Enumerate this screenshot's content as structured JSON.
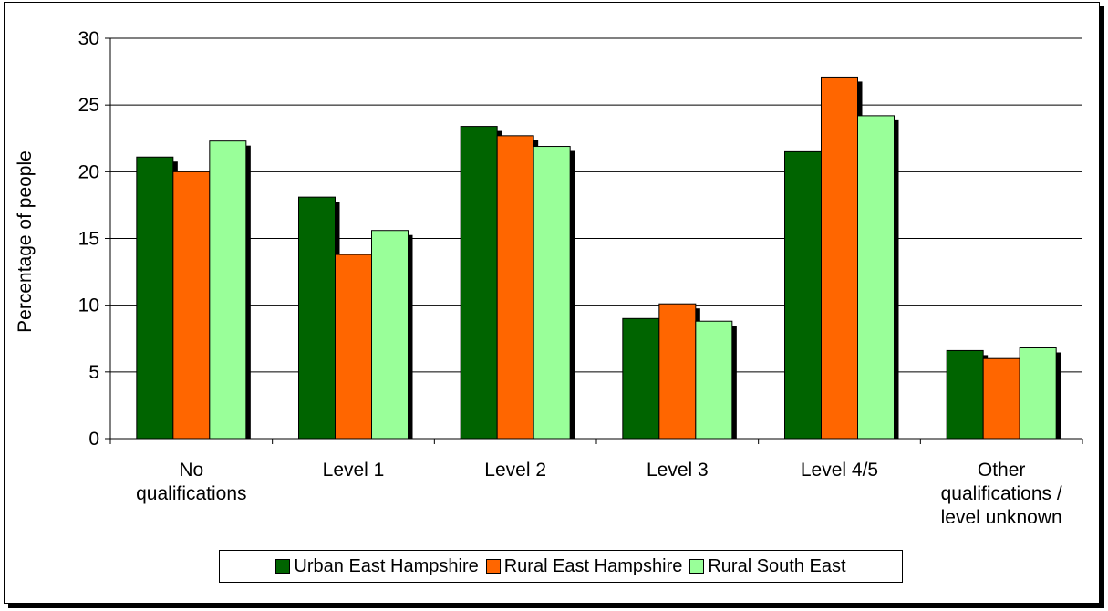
{
  "chart_data": {
    "type": "bar",
    "title": "",
    "xlabel": "",
    "ylabel": "Percentage of people",
    "ylim": [
      0,
      30
    ],
    "yticks": [
      0,
      5,
      10,
      15,
      20,
      25,
      30
    ],
    "grid": true,
    "legend_position": "bottom",
    "categories": [
      [
        "No",
        "qualifications"
      ],
      [
        "Level 1"
      ],
      [
        "Level 2"
      ],
      [
        "Level 3"
      ],
      [
        "Level 4/5"
      ],
      [
        "Other",
        "qualifications /",
        "level unknown"
      ]
    ],
    "series": [
      {
        "name": "Urban East Hampshire",
        "color": "#006400",
        "values": [
          21.1,
          18.1,
          23.4,
          9.0,
          21.5,
          6.6
        ]
      },
      {
        "name": "Rural East Hampshire",
        "color": "#ff6600",
        "values": [
          20.0,
          13.8,
          22.7,
          10.1,
          27.1,
          6.0
        ]
      },
      {
        "name": "Rural South East",
        "color": "#99ff99",
        "values": [
          22.3,
          15.6,
          21.9,
          8.8,
          24.2,
          6.8
        ]
      }
    ]
  }
}
